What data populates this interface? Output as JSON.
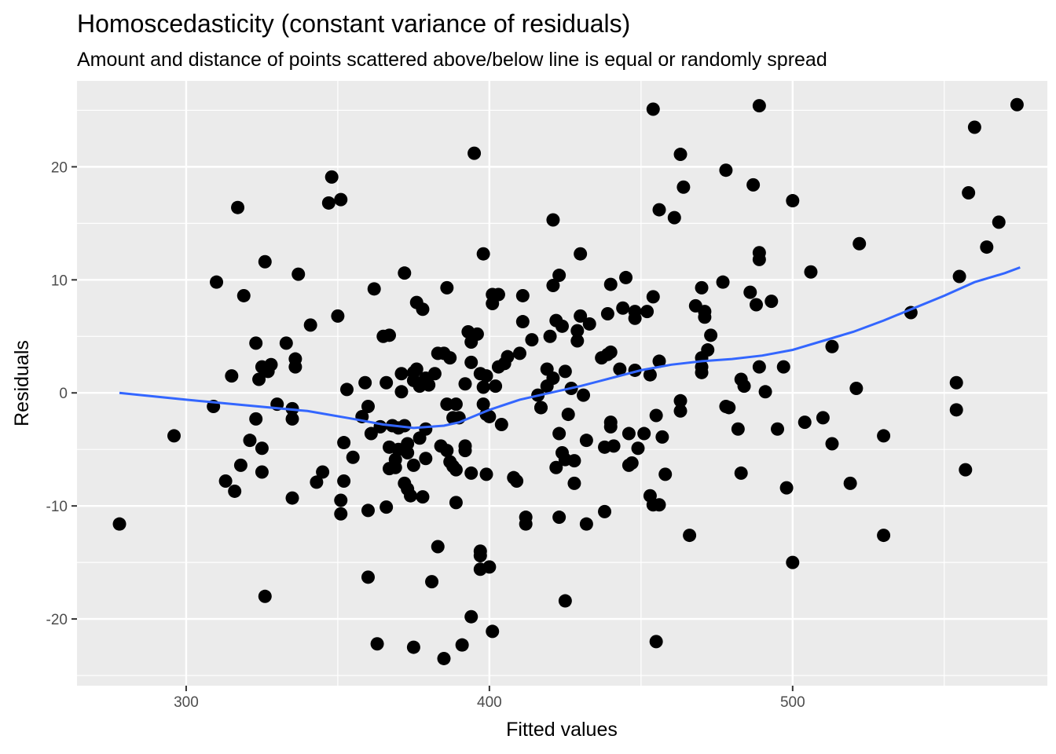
{
  "chart_data": {
    "type": "scatter",
    "title": "Homoscedasticity (constant variance of residuals)",
    "subtitle": "Amount and distance of points scattered above/below line is equal or randomly spread",
    "xlabel": "Fitted values",
    "ylabel": "Residuals",
    "xlim": [
      264,
      584
    ],
    "ylim": [
      -25.9,
      27.6
    ],
    "x_ticks": [
      300,
      400,
      500
    ],
    "x_tick_labels": [
      "300",
      "400",
      "500"
    ],
    "y_ticks": [
      -20,
      -10,
      0,
      10,
      20
    ],
    "y_tick_labels": [
      "-20",
      "-10",
      "0",
      "10",
      "20"
    ],
    "grid": true,
    "colors": {
      "panel": "#ebebeb",
      "grid": "#ffffff",
      "points": "#000000",
      "smooth": "#3366ff"
    },
    "points": [
      [
        278,
        -11.6
      ],
      [
        296,
        -3.8
      ],
      [
        309,
        -1.2
      ],
      [
        310,
        9.8
      ],
      [
        313,
        -7.8
      ],
      [
        315,
        1.5
      ],
      [
        316,
        -8.7
      ],
      [
        317,
        16.4
      ],
      [
        318,
        -6.4
      ],
      [
        319,
        8.6
      ],
      [
        321,
        -4.2
      ],
      [
        323,
        -2.3
      ],
      [
        323,
        4.4
      ],
      [
        324,
        1.2
      ],
      [
        325,
        -7.0
      ],
      [
        325,
        -4.9
      ],
      [
        325,
        2.3
      ],
      [
        326,
        11.6
      ],
      [
        326,
        -18.0
      ],
      [
        327,
        1.9
      ],
      [
        328,
        2.5
      ],
      [
        330,
        -1.0
      ],
      [
        333,
        4.4
      ],
      [
        335,
        -1.4
      ],
      [
        335,
        -2.3
      ],
      [
        335,
        -9.3
      ],
      [
        336,
        3.0
      ],
      [
        336,
        2.3
      ],
      [
        337,
        10.5
      ],
      [
        341,
        6.0
      ],
      [
        343,
        -7.9
      ],
      [
        345,
        -7.0
      ],
      [
        347,
        16.8
      ],
      [
        348,
        19.1
      ],
      [
        350,
        6.8
      ],
      [
        351,
        17.1
      ],
      [
        351,
        -9.5
      ],
      [
        351,
        -10.7
      ],
      [
        352,
        -7.8
      ],
      [
        352,
        -4.4
      ],
      [
        353,
        0.3
      ],
      [
        355,
        -5.7
      ],
      [
        358,
        -2.1
      ],
      [
        359,
        0.9
      ],
      [
        360,
        -1.2
      ],
      [
        360,
        -10.4
      ],
      [
        360,
        -16.3
      ],
      [
        361,
        -3.6
      ],
      [
        362,
        9.2
      ],
      [
        363,
        -22.2
      ],
      [
        364,
        -3.0
      ],
      [
        365,
        5.0
      ],
      [
        366,
        0.9
      ],
      [
        366,
        -10.1
      ],
      [
        367,
        5.1
      ],
      [
        367,
        -4.8
      ],
      [
        367,
        -6.7
      ],
      [
        368,
        -2.9
      ],
      [
        369,
        -5.9
      ],
      [
        369,
        -6.6
      ],
      [
        370,
        -3.1
      ],
      [
        370,
        -5.0
      ],
      [
        371,
        1.7
      ],
      [
        371,
        0.1
      ],
      [
        372,
        10.6
      ],
      [
        372,
        -8.0
      ],
      [
        372,
        -2.9
      ],
      [
        373,
        -5.3
      ],
      [
        373,
        -4.5
      ],
      [
        373,
        -8.5
      ],
      [
        374,
        -9.1
      ],
      [
        375,
        1.1
      ],
      [
        375,
        -6.4
      ],
      [
        375,
        1.8
      ],
      [
        375,
        -22.5
      ],
      [
        376,
        8.0
      ],
      [
        376,
        2.1
      ],
      [
        377,
        -4.0
      ],
      [
        377,
        0.6
      ],
      [
        378,
        -9.2
      ],
      [
        378,
        7.4
      ],
      [
        379,
        1.3
      ],
      [
        379,
        -3.2
      ],
      [
        379,
        -5.8
      ],
      [
        380,
        0.7
      ],
      [
        381,
        -16.7
      ],
      [
        382,
        1.7
      ],
      [
        383,
        3.5
      ],
      [
        383,
        -13.6
      ],
      [
        384,
        -4.7
      ],
      [
        385,
        3.5
      ],
      [
        385,
        -23.5
      ],
      [
        386,
        -5.1
      ],
      [
        386,
        -1.0
      ],
      [
        386,
        9.3
      ],
      [
        387,
        3.1
      ],
      [
        387,
        -6.1
      ],
      [
        388,
        -6.5
      ],
      [
        388,
        -2.2
      ],
      [
        389,
        -6.8
      ],
      [
        389,
        -1.0
      ],
      [
        389,
        -9.7
      ],
      [
        390,
        -2.2
      ],
      [
        391,
        -22.3
      ],
      [
        392,
        0.8
      ],
      [
        392,
        -5.1
      ],
      [
        392,
        -4.7
      ],
      [
        393,
        5.4
      ],
      [
        394,
        -19.8
      ],
      [
        394,
        -7.1
      ],
      [
        394,
        4.5
      ],
      [
        394,
        2.7
      ],
      [
        395,
        21.2
      ],
      [
        396,
        5.2
      ],
      [
        397,
        1.7
      ],
      [
        397,
        -14.0
      ],
      [
        397,
        -14.4
      ],
      [
        397,
        -15.6
      ],
      [
        398,
        12.3
      ],
      [
        398,
        -1.0
      ],
      [
        398,
        0.5
      ],
      [
        399,
        -1.9
      ],
      [
        399,
        1.5
      ],
      [
        399,
        -7.2
      ],
      [
        400,
        -2.1
      ],
      [
        400,
        -15.4
      ],
      [
        401,
        8.7
      ],
      [
        401,
        7.9
      ],
      [
        401,
        -21.1
      ],
      [
        402,
        0.6
      ],
      [
        403,
        8.7
      ],
      [
        403,
        2.3
      ],
      [
        404,
        -2.8
      ],
      [
        405,
        2.6
      ],
      [
        406,
        3.2
      ],
      [
        408,
        -7.5
      ],
      [
        409,
        -7.8
      ],
      [
        410,
        3.5
      ],
      [
        411,
        6.3
      ],
      [
        411,
        8.6
      ],
      [
        412,
        -11.0
      ],
      [
        412,
        -11.6
      ],
      [
        414,
        4.7
      ],
      [
        416,
        -0.2
      ],
      [
        417,
        -1.3
      ],
      [
        417,
        -1.3
      ],
      [
        419,
        0.6
      ],
      [
        419,
        2.1
      ],
      [
        420,
        5.0
      ],
      [
        421,
        9.5
      ],
      [
        421,
        1.3
      ],
      [
        421,
        15.3
      ],
      [
        422,
        6.4
      ],
      [
        422,
        -6.6
      ],
      [
        423,
        -3.6
      ],
      [
        423,
        10.4
      ],
      [
        423,
        -11.0
      ],
      [
        424,
        -5.3
      ],
      [
        424,
        5.9
      ],
      [
        425,
        -5.9
      ],
      [
        425,
        1.9
      ],
      [
        425,
        -18.4
      ],
      [
        426,
        -1.9
      ],
      [
        427,
        0.4
      ],
      [
        428,
        -8.0
      ],
      [
        428,
        -6.0
      ],
      [
        429,
        5.5
      ],
      [
        429,
        4.6
      ],
      [
        430,
        6.8
      ],
      [
        430,
        12.3
      ],
      [
        431,
        -0.2
      ],
      [
        432,
        -4.2
      ],
      [
        432,
        -11.6
      ],
      [
        433,
        6.1
      ],
      [
        437,
        3.1
      ],
      [
        438,
        -4.8
      ],
      [
        438,
        -10.5
      ],
      [
        439,
        3.4
      ],
      [
        439,
        7.0
      ],
      [
        440,
        -3.0
      ],
      [
        440,
        9.6
      ],
      [
        440,
        3.6
      ],
      [
        440,
        -2.6
      ],
      [
        441,
        -4.7
      ],
      [
        443,
        2.1
      ],
      [
        444,
        7.5
      ],
      [
        445,
        10.2
      ],
      [
        446,
        -6.4
      ],
      [
        446,
        -3.6
      ],
      [
        447,
        -6.2
      ],
      [
        448,
        7.2
      ],
      [
        448,
        6.6
      ],
      [
        448,
        2.0
      ],
      [
        449,
        -4.9
      ],
      [
        451,
        -3.6
      ],
      [
        452,
        7.2
      ],
      [
        453,
        1.6
      ],
      [
        453,
        -9.1
      ],
      [
        454,
        8.5
      ],
      [
        454,
        25.1
      ],
      [
        454,
        -9.9
      ],
      [
        455,
        -2.0
      ],
      [
        455,
        -22.0
      ],
      [
        456,
        16.2
      ],
      [
        456,
        2.8
      ],
      [
        456,
        -9.9
      ],
      [
        457,
        -3.9
      ],
      [
        458,
        -7.2
      ],
      [
        461,
        15.5
      ],
      [
        463,
        -0.7
      ],
      [
        463,
        -1.6
      ],
      [
        463,
        21.1
      ],
      [
        464,
        18.2
      ],
      [
        466,
        -12.6
      ],
      [
        468,
        7.7
      ],
      [
        470,
        3.1
      ],
      [
        470,
        2.3
      ],
      [
        470,
        1.8
      ],
      [
        470,
        9.3
      ],
      [
        471,
        6.7
      ],
      [
        471,
        7.2
      ],
      [
        472,
        3.8
      ],
      [
        473,
        5.1
      ],
      [
        477,
        9.8
      ],
      [
        478,
        19.7
      ],
      [
        478,
        -1.2
      ],
      [
        479,
        -1.3
      ],
      [
        482,
        -3.2
      ],
      [
        483,
        -7.1
      ],
      [
        483,
        1.2
      ],
      [
        484,
        0.6
      ],
      [
        486,
        8.9
      ],
      [
        487,
        18.4
      ],
      [
        488,
        7.8
      ],
      [
        489,
        2.3
      ],
      [
        489,
        11.8
      ],
      [
        489,
        12.4
      ],
      [
        489,
        25.4
      ],
      [
        491,
        0.1
      ],
      [
        493,
        8.1
      ],
      [
        495,
        -3.2
      ],
      [
        497,
        2.3
      ],
      [
        498,
        -8.4
      ],
      [
        500,
        -15.0
      ],
      [
        500,
        17.0
      ],
      [
        504,
        -2.6
      ],
      [
        506,
        10.7
      ],
      [
        510,
        -2.2
      ],
      [
        513,
        -4.5
      ],
      [
        513,
        4.1
      ],
      [
        519,
        -8.0
      ],
      [
        521,
        0.4
      ],
      [
        522,
        13.2
      ],
      [
        530,
        -12.6
      ],
      [
        530,
        -3.8
      ],
      [
        539,
        7.1
      ],
      [
        554,
        0.9
      ],
      [
        554,
        -1.5
      ],
      [
        555,
        10.3
      ],
      [
        557,
        -6.8
      ],
      [
        558,
        17.7
      ],
      [
        560,
        23.5
      ],
      [
        564,
        12.9
      ],
      [
        568,
        15.1
      ],
      [
        574,
        25.5
      ]
    ],
    "smooth": [
      [
        278,
        0.0
      ],
      [
        300,
        -0.6
      ],
      [
        320,
        -1.1
      ],
      [
        340,
        -1.6
      ],
      [
        355,
        -2.3
      ],
      [
        365,
        -2.8
      ],
      [
        375,
        -3.1
      ],
      [
        385,
        -2.9
      ],
      [
        390,
        -2.6
      ],
      [
        400,
        -1.5
      ],
      [
        410,
        -0.6
      ],
      [
        420,
        0.0
      ],
      [
        430,
        0.6
      ],
      [
        440,
        1.3
      ],
      [
        450,
        2.0
      ],
      [
        460,
        2.5
      ],
      [
        470,
        2.8
      ],
      [
        480,
        3.0
      ],
      [
        490,
        3.3
      ],
      [
        500,
        3.8
      ],
      [
        510,
        4.6
      ],
      [
        520,
        5.4
      ],
      [
        530,
        6.4
      ],
      [
        540,
        7.5
      ],
      [
        550,
        8.6
      ],
      [
        560,
        9.8
      ],
      [
        570,
        10.6
      ],
      [
        575,
        11.1
      ]
    ]
  }
}
